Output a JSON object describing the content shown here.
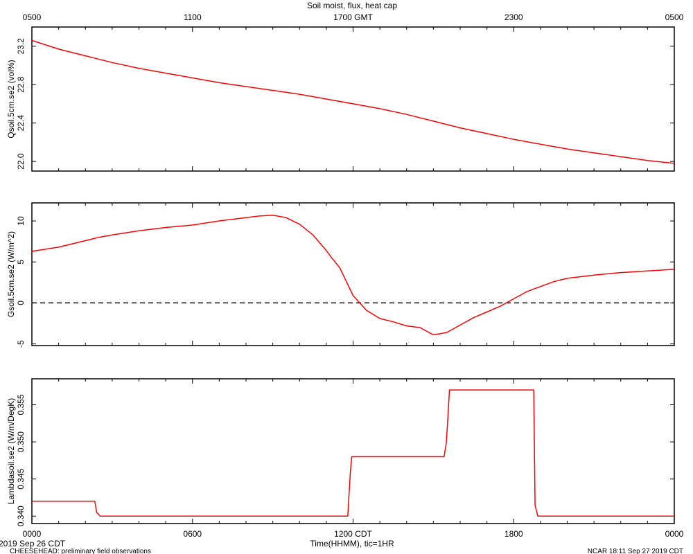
{
  "chart_data": {
    "type": "line",
    "title": "Soil moist, flux, heat cap",
    "line_color": "#ff0000",
    "top_axis": {
      "tick_labels": [
        "0500",
        "1100",
        "1700 GMT",
        "2300",
        "0500"
      ],
      "tick_hours": [
        0,
        6,
        12,
        18,
        24
      ]
    },
    "bottom_axis": {
      "tick_labels": [
        "0000",
        "0600",
        "1200 CDT",
        "1800",
        "0000"
      ],
      "tick_hours": [
        0,
        6,
        12,
        18,
        24
      ],
      "xlabel": "Time(HHMM), tic=1HR",
      "xlim": [
        0,
        24
      ]
    },
    "panels": [
      {
        "ylabel": "Qsoil.5cm.se2 (vol%)",
        "ylim": [
          21.9,
          23.4
        ],
        "yticks": [
          22.0,
          22.4,
          22.8,
          23.2
        ],
        "ytick_labels": [
          "22.0",
          "22.4",
          "22.8",
          "23.2"
        ],
        "dashed_zero": false,
        "x": [
          0,
          1,
          2,
          3,
          4,
          5,
          6,
          7,
          8,
          9,
          10,
          11,
          12,
          13,
          14,
          15,
          16,
          17,
          18,
          19,
          20,
          21,
          22,
          23,
          24
        ],
        "y": [
          23.26,
          23.17,
          23.1,
          23.03,
          22.97,
          22.92,
          22.87,
          22.82,
          22.78,
          22.74,
          22.7,
          22.65,
          22.6,
          22.55,
          22.49,
          22.42,
          22.35,
          22.29,
          22.23,
          22.18,
          22.13,
          22.09,
          22.05,
          22.01,
          21.98
        ]
      },
      {
        "ylabel": "Gsoil.5cm.se2 (W/m^2)",
        "ylim": [
          -5.2,
          12.2
        ],
        "yticks": [
          -5,
          0,
          5,
          10
        ],
        "ytick_labels": [
          "-5",
          "0",
          "5",
          "10"
        ],
        "dashed_zero": true,
        "x": [
          0,
          1,
          2,
          2.5,
          3,
          4,
          5,
          6,
          7,
          8,
          8.5,
          9,
          9.5,
          10,
          10.5,
          11,
          11.2,
          11.5,
          12,
          12.5,
          13,
          13.5,
          14,
          14.5,
          15,
          15.5,
          16,
          16.5,
          17,
          17.5,
          18,
          18.5,
          19,
          19.5,
          20,
          21,
          22,
          23,
          24
        ],
        "y": [
          6.3,
          6.8,
          7.6,
          8.0,
          8.3,
          8.8,
          9.2,
          9.5,
          10.0,
          10.4,
          10.6,
          10.7,
          10.4,
          9.6,
          8.3,
          6.4,
          5.5,
          4.3,
          0.9,
          -0.9,
          -1.9,
          -2.3,
          -2.8,
          -3.0,
          -3.9,
          -3.6,
          -2.7,
          -1.8,
          -1.1,
          -0.4,
          0.5,
          1.4,
          2.0,
          2.6,
          3.0,
          3.4,
          3.7,
          3.9,
          4.1
        ]
      },
      {
        "ylabel": "Lambdasoil.se2 (W/m/DegK)",
        "ylim": [
          0.339,
          0.3585
        ],
        "yticks": [
          0.34,
          0.345,
          0.35,
          0.355
        ],
        "ytick_labels": [
          "0.340",
          "0.345",
          "0.350",
          "0.355"
        ],
        "dashed_zero": false,
        "x": [
          0,
          2.35,
          2.42,
          2.55,
          11.8,
          11.9,
          11.95,
          15.4,
          15.48,
          15.52,
          15.6,
          18.75,
          18.8,
          18.9,
          24
        ],
        "y": [
          0.342,
          0.342,
          0.3405,
          0.34,
          0.34,
          0.346,
          0.348,
          0.348,
          0.3498,
          0.352,
          0.357,
          0.357,
          0.3415,
          0.34,
          0.34
        ]
      }
    ]
  },
  "footer": {
    "start_date": "2019 Sep 26 CDT",
    "project": "CHEESEHEAD: preliminary field observations",
    "stamp": "NCAR 18:11 Sep 27 2019 CDT"
  }
}
